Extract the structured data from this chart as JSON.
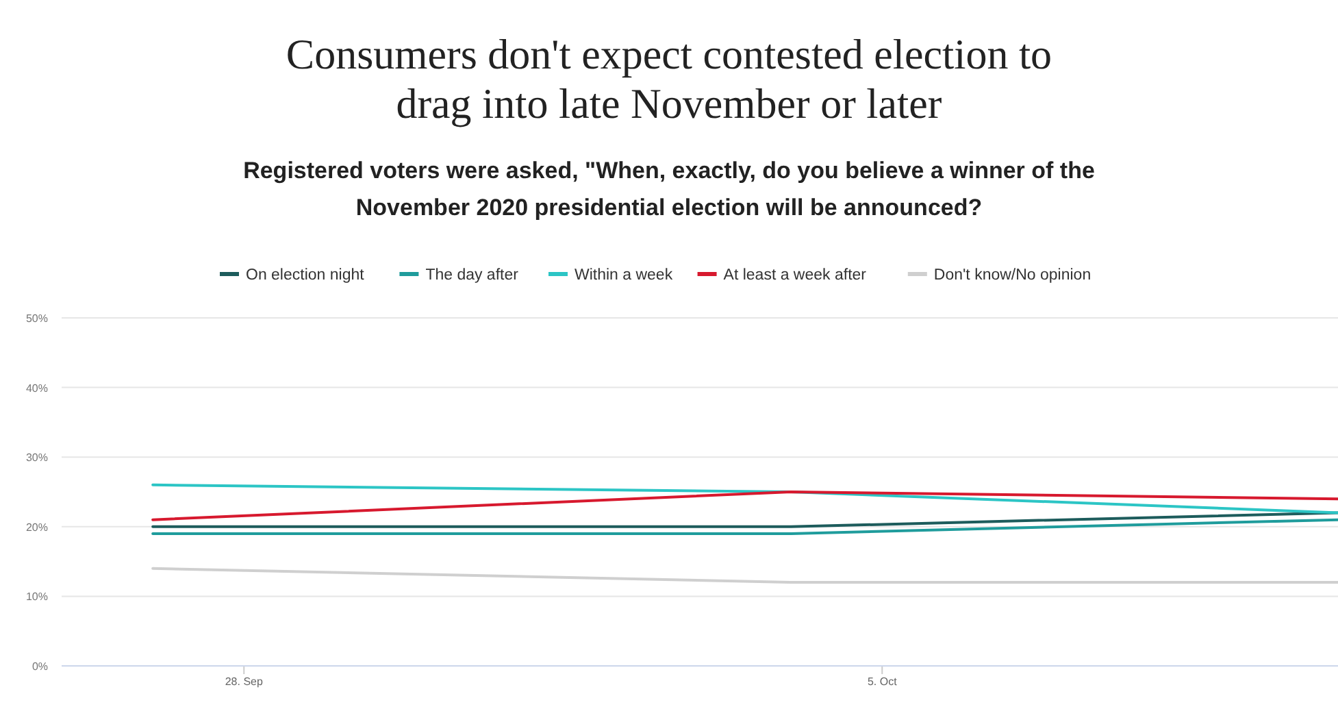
{
  "chart_data": {
    "type": "line",
    "title": "Consumers don't expect contested election to drag into late November or later",
    "subtitle": "Registered voters were asked, \"When, exactly, do you believe a winner of the November 2020 presidential election will be announced?",
    "x": [
      "2020-09-27",
      "2020-10-04",
      "2020-10-10"
    ],
    "xlim": [
      "2020-09-26",
      "2020-10-10"
    ],
    "xticks": [
      {
        "value": "2020-09-28",
        "label": "28. Sep"
      },
      {
        "value": "2020-10-05",
        "label": "5. Oct"
      }
    ],
    "ylim": [
      0,
      50
    ],
    "yticks": [
      {
        "value": 0,
        "label": "0%"
      },
      {
        "value": 10,
        "label": "10%"
      },
      {
        "value": 20,
        "label": "20%"
      },
      {
        "value": 30,
        "label": "30%"
      },
      {
        "value": 40,
        "label": "40%"
      },
      {
        "value": 50,
        "label": "50%"
      }
    ],
    "grid": "y",
    "legend": "top",
    "marker": "none",
    "line_style": "solid",
    "series": [
      {
        "name": "On election night",
        "color": "#1d5c5c",
        "values": [
          20,
          20,
          22
        ]
      },
      {
        "name": "The day after",
        "color": "#1f9c9c",
        "values": [
          19,
          19,
          21
        ]
      },
      {
        "name": "Within a week",
        "color": "#2cc5c5",
        "values": [
          26,
          25,
          22
        ]
      },
      {
        "name": "At least a week after",
        "color": "#d7192e",
        "values": [
          21,
          25,
          24
        ]
      },
      {
        "name": "Don't know/No opinion",
        "color": "#cfcfcf",
        "values": [
          14,
          12,
          12
        ]
      }
    ]
  }
}
